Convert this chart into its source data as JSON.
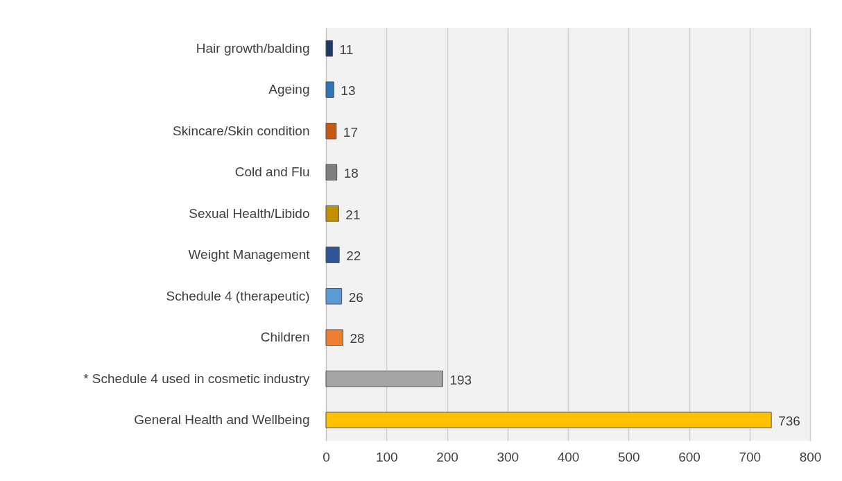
{
  "chart_data": {
    "type": "bar",
    "orientation": "horizontal",
    "categories": [
      "Hair growth/balding",
      "Ageing",
      "Skincare/Skin condition",
      "Cold and Flu",
      "Sexual Health/Libido",
      "Weight Management",
      "Schedule 4 (therapeutic)",
      "Children",
      "* Schedule 4 used in cosmetic industry",
      "General Health and Wellbeing"
    ],
    "values": [
      11,
      13,
      17,
      18,
      21,
      22,
      26,
      28,
      193,
      736
    ],
    "colors": [
      "#203864",
      "#2e75b6",
      "#c55a11",
      "#7f7f7f",
      "#bf9000",
      "#2f5597",
      "#5b9bd5",
      "#ed7d31",
      "#a5a5a5",
      "#ffc000"
    ],
    "xlim": [
      0,
      800
    ],
    "xticks": [
      0,
      100,
      200,
      300,
      400,
      500,
      600,
      700,
      800
    ],
    "grid": "x",
    "data_labels": true,
    "legend": false
  }
}
